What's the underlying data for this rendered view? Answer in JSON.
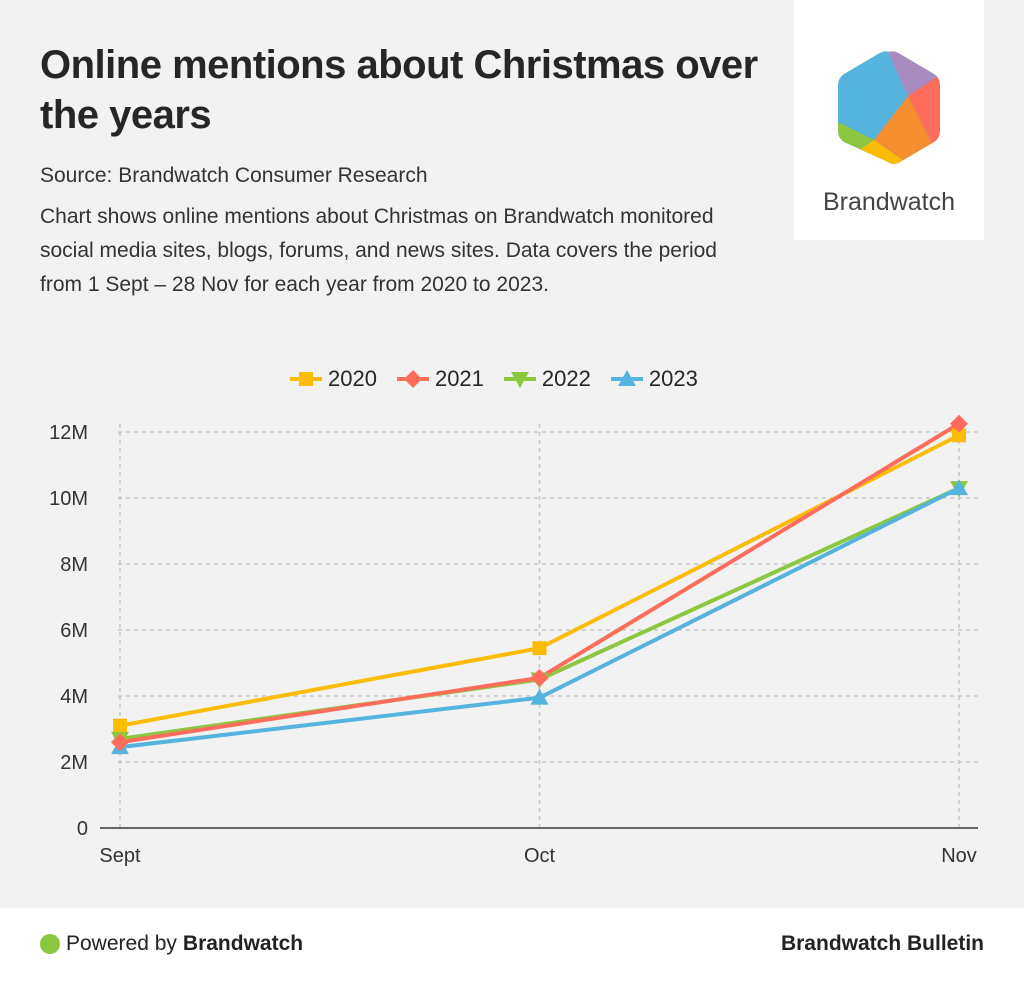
{
  "header": {
    "title": "Online mentions about Christmas over the years",
    "source": "Source: Brandwatch Consumer Research",
    "description": "Chart shows online mentions about Christmas on Brandwatch monitored social media sites, blogs, forums, and news sites. Data covers the period from 1 Sept – 28 Nov for each year from 2020 to 2023."
  },
  "logo": {
    "name": "Brandwatch"
  },
  "footer": {
    "powered_prefix": "Powered by",
    "powered_brand": "Brandwatch",
    "bulletin": "Brandwatch Bulletin"
  },
  "chart_data": {
    "type": "line",
    "title": "Online mentions about Christmas over the years",
    "xlabel": "",
    "ylabel": "",
    "categories": [
      "Sept",
      "Oct",
      "Nov"
    ],
    "ylim": [
      0,
      12000000
    ],
    "yticks": [
      0,
      2000000,
      4000000,
      6000000,
      8000000,
      10000000,
      12000000
    ],
    "ytick_labels": [
      "0",
      "2M",
      "4M",
      "6M",
      "8M",
      "10M",
      "12M"
    ],
    "grid": true,
    "legend_position": "top-center",
    "series": [
      {
        "name": "2020",
        "color": "#fbbc05",
        "marker": "square",
        "values": [
          3100000,
          5450000,
          11900000
        ]
      },
      {
        "name": "2021",
        "color": "#fe6d5b",
        "marker": "diamond",
        "values": [
          2600000,
          4550000,
          12250000
        ]
      },
      {
        "name": "2022",
        "color": "#8dc63f",
        "marker": "triangle-down",
        "values": [
          2700000,
          4500000,
          10300000
        ]
      },
      {
        "name": "2023",
        "color": "#55b4dd",
        "marker": "triangle-up",
        "values": [
          2450000,
          3950000,
          10300000
        ]
      }
    ]
  }
}
